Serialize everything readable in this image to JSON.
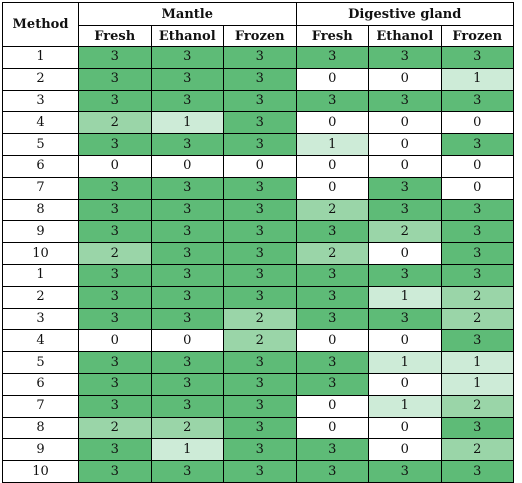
{
  "table": {
    "header": {
      "method": "Method",
      "groups": [
        "Mantle",
        "Digestive gland"
      ],
      "subcolumns": [
        "Fresh",
        "Ethanol",
        "Frozen",
        "Fresh",
        "Ethanol",
        "Frozen"
      ]
    },
    "rows": [
      {
        "method": "1",
        "values": [
          "3",
          "3",
          "3",
          "3",
          "3",
          "3"
        ]
      },
      {
        "method": "2",
        "values": [
          "3",
          "3",
          "3",
          "0",
          "0",
          "1"
        ]
      },
      {
        "method": "3",
        "values": [
          "3",
          "3",
          "3",
          "3",
          "3",
          "3"
        ]
      },
      {
        "method": "4",
        "values": [
          "2",
          "1",
          "3",
          "0",
          "0",
          "0"
        ]
      },
      {
        "method": "5",
        "values": [
          "3",
          "3",
          "3",
          "1",
          "0",
          "3"
        ]
      },
      {
        "method": "6",
        "values": [
          "0",
          "0",
          "0",
          "0",
          "0",
          "0"
        ]
      },
      {
        "method": "7",
        "values": [
          "3",
          "3",
          "3",
          "0",
          "3",
          "0"
        ]
      },
      {
        "method": "8",
        "values": [
          "3",
          "3",
          "3",
          "2",
          "3",
          "3"
        ]
      },
      {
        "method": "9",
        "values": [
          "3",
          "3",
          "3",
          "3",
          "2",
          "3"
        ]
      },
      {
        "method": "10",
        "values": [
          "2",
          "3",
          "3",
          "2",
          "0",
          "3"
        ]
      },
      {
        "method": "1",
        "values": [
          "3",
          "3",
          "3",
          "3",
          "3",
          "3"
        ]
      },
      {
        "method": "2",
        "values": [
          "3",
          "3",
          "3",
          "3",
          "1",
          "2"
        ]
      },
      {
        "method": "3",
        "values": [
          "3",
          "3",
          "2",
          "3",
          "3",
          "2"
        ]
      },
      {
        "method": "4",
        "values": [
          "0",
          "0",
          "2",
          "0",
          "0",
          "3"
        ]
      },
      {
        "method": "5",
        "values": [
          "3",
          "3",
          "3",
          "3",
          "1",
          "1"
        ]
      },
      {
        "method": "6",
        "values": [
          "3",
          "3",
          "3",
          "3",
          "0",
          "1"
        ]
      },
      {
        "method": "7",
        "values": [
          "3",
          "3",
          "3",
          "0",
          "1",
          "2"
        ]
      },
      {
        "method": "8",
        "values": [
          "2",
          "2",
          "3",
          "0",
          "0",
          "3"
        ]
      },
      {
        "method": "9",
        "values": [
          "3",
          "1",
          "3",
          "3",
          "0",
          "2"
        ]
      },
      {
        "method": "10",
        "values": [
          "3",
          "3",
          "3",
          "3",
          "3",
          "3"
        ]
      }
    ]
  },
  "colors": {
    "score_0": "#ffffff",
    "score_1": "#cdebd7",
    "score_2": "#9ad5a8",
    "score_3": "#5ebb77"
  }
}
